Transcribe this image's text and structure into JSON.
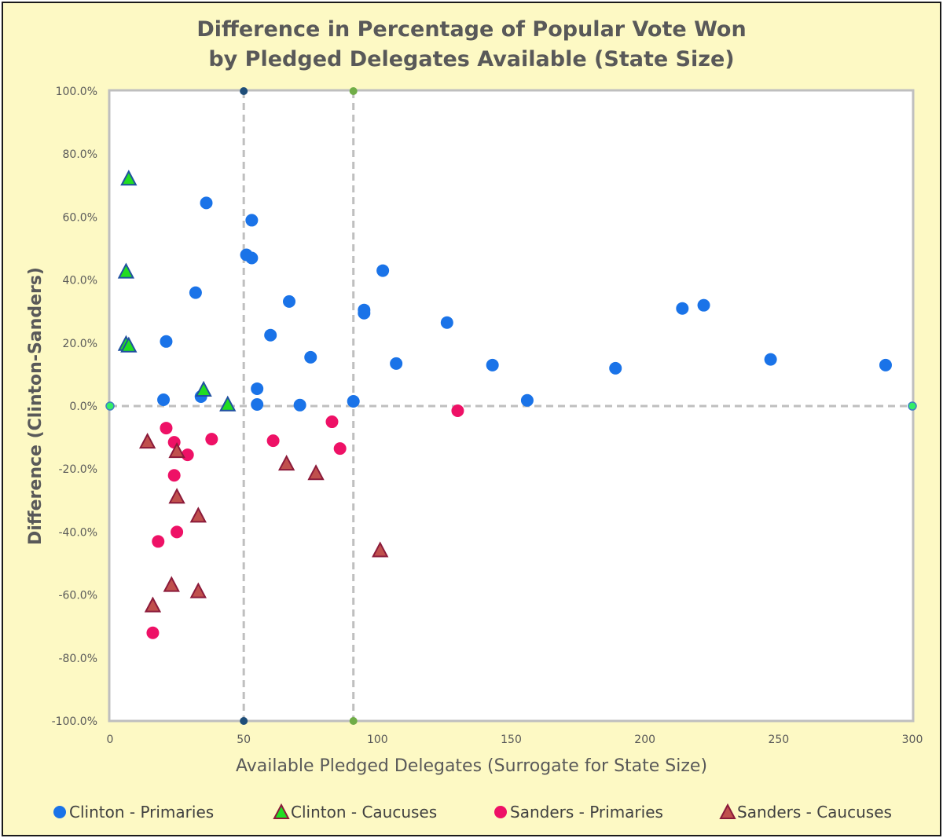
{
  "chart_data": {
    "type": "scatter",
    "title": [
      "Difference in Percentage of Popular Vote Won",
      "by Pledged Delegates Available (State Size)"
    ],
    "xlabel": "Available Pledged Delegates (Surrogate for State Size)",
    "ylabel": "Difference (Clinton-Sanders)",
    "xlim": [
      0,
      300
    ],
    "ylim": [
      -100,
      100
    ],
    "x_ticks": [
      0,
      50,
      100,
      150,
      200,
      250,
      300
    ],
    "x_tick_labels": [
      "0",
      "50",
      "100",
      "150",
      "200",
      "250",
      "300"
    ],
    "y_ticks": [
      100,
      80,
      60,
      40,
      20,
      0,
      -20,
      -40,
      -60,
      -80,
      -100
    ],
    "y_tick_labels": [
      "100.0%",
      "80.0%",
      "60.0%",
      "40.0%",
      "20.0%",
      "0.0%",
      "-20.0%",
      "-40.0%",
      "-60.0%",
      "-80.0%",
      "-100.0%"
    ],
    "reference_lines": [
      {
        "orientation": "vertical",
        "x": 50,
        "color": "#1f4e79"
      },
      {
        "orientation": "vertical",
        "x": 91,
        "color": "#70ad47"
      },
      {
        "orientation": "horizontal",
        "y": 0,
        "color": "#00b050"
      }
    ],
    "series": [
      {
        "name": "Clinton - Primaries",
        "marker": "circle",
        "color": "#1a73e8",
        "points": [
          [
            36,
            64.5
          ],
          [
            53,
            59
          ],
          [
            51,
            48
          ],
          [
            53,
            47
          ],
          [
            32,
            36
          ],
          [
            67,
            33.2
          ],
          [
            102,
            43
          ],
          [
            95,
            29.5
          ],
          [
            95,
            30.5
          ],
          [
            60,
            22.5
          ],
          [
            75,
            15.5
          ],
          [
            21,
            20.5
          ],
          [
            107,
            13.5
          ],
          [
            126,
            26.5
          ],
          [
            143,
            13
          ],
          [
            20,
            2
          ],
          [
            34,
            3
          ],
          [
            55,
            5.5
          ],
          [
            55,
            0.5
          ],
          [
            71,
            0.3
          ],
          [
            91,
            1.5
          ],
          [
            156,
            1.8
          ],
          [
            189,
            12
          ],
          [
            214,
            31
          ],
          [
            222,
            32
          ],
          [
            247,
            14.8
          ],
          [
            290,
            13
          ]
        ]
      },
      {
        "name": "Clinton - Caucuses",
        "marker": "triangle",
        "color": "#22dd22",
        "points": [
          [
            7,
            72
          ],
          [
            6,
            42.5
          ],
          [
            6,
            19.5
          ],
          [
            7,
            19
          ],
          [
            35,
            5
          ],
          [
            44,
            0.3
          ]
        ]
      },
      {
        "name": "Sanders - Primaries",
        "marker": "circle",
        "color": "#ee1166",
        "points": [
          [
            21,
            -7
          ],
          [
            24,
            -11.5
          ],
          [
            29,
            -15.5
          ],
          [
            38,
            -10.5
          ],
          [
            24,
            -22
          ],
          [
            25,
            -40
          ],
          [
            18,
            -43
          ],
          [
            16,
            -72
          ],
          [
            61,
            -11
          ],
          [
            83,
            -5
          ],
          [
            86,
            -13.5
          ],
          [
            130,
            -1.5
          ]
        ]
      },
      {
        "name": "Sanders - Caucuses",
        "marker": "triangle",
        "color": "#c0504d",
        "points": [
          [
            14,
            -11.5
          ],
          [
            25,
            -14.5
          ],
          [
            25,
            -29
          ],
          [
            33,
            -35
          ],
          [
            23,
            -57
          ],
          [
            33,
            -59
          ],
          [
            16,
            -63.5
          ],
          [
            66,
            -18.5
          ],
          [
            77,
            -21.5
          ],
          [
            101,
            -46
          ]
        ]
      }
    ],
    "legend": [
      "Clinton - Primaries",
      "Clinton - Caucuses",
      "Sanders - Primaries",
      "Sanders - Caucuses"
    ],
    "legend_position": "bottom",
    "grid": false
  }
}
